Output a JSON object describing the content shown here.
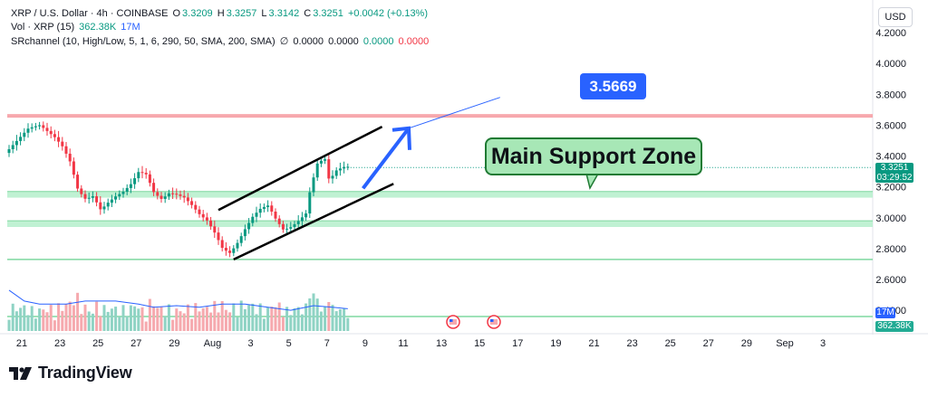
{
  "header": {
    "symbol_line": "XRP / U.S. Dollar · 4h · COINBASE",
    "o_label": "O",
    "o_val": "3.3209",
    "h_label": "H",
    "h_val": "3.3257",
    "l_label": "L",
    "l_val": "3.3142",
    "c_label": "C",
    "c_val": "3.3251",
    "change": "+0.0042 (+0.13%)",
    "vol_label": "Vol · XRP (15)",
    "vol_val1": "362.38K",
    "vol_val2": "17M",
    "src_label": "SRchannel (10, High/Low, 5, 1, 6, 290, 50, SMA, 200, SMA)",
    "src_icon": "∅",
    "src_v1": "0.0000",
    "src_v2": "0.0000",
    "src_v3": "0.0000",
    "src_v4": "0.0000"
  },
  "currency_button": "USD",
  "annotations": {
    "callout_text": "Main Support Zone",
    "target_text": "3.5669"
  },
  "price_tags": {
    "last_price": "3.3251",
    "countdown": "03:29:52",
    "vol_ma": "17M",
    "vol_last": "362.38K"
  },
  "branding": {
    "logo_text": "TradingView"
  },
  "colors": {
    "up": "#089981",
    "down": "#f23645",
    "zone_fill": "#b9f0ce",
    "resistance_line": "#f7a8ad",
    "target_blue": "#2962ff",
    "vol_ma_line": "#2962ff"
  },
  "chart_data": [
    {
      "type": "candlestick",
      "title": "XRP / U.S. Dollar · 4h · COINBASE",
      "y_ticks": [
        "4.2000",
        "4.0000",
        "3.8000",
        "3.6000",
        "3.4000",
        "3.2000",
        "3.0000",
        "2.8000",
        "2.6000",
        "2.4000"
      ],
      "x_ticks": [
        "21",
        "23",
        "25",
        "27",
        "29",
        "Aug",
        "3",
        "5",
        "7",
        "9",
        "11",
        "13",
        "15",
        "17",
        "19",
        "21",
        "23",
        "25",
        "27",
        "29",
        "Sep",
        "3"
      ],
      "ylim": [
        2.4,
        4.28
      ],
      "price_path": [
        [
          0,
          3.42
        ],
        [
          3,
          3.5
        ],
        [
          6,
          3.58
        ],
        [
          9,
          3.6
        ],
        [
          11,
          3.56
        ],
        [
          13,
          3.52
        ],
        [
          15,
          3.46
        ],
        [
          17,
          3.36
        ],
        [
          19,
          3.18
        ],
        [
          21,
          3.12
        ],
        [
          23,
          3.14
        ],
        [
          25,
          3.05
        ],
        [
          27,
          3.1
        ],
        [
          29,
          3.14
        ],
        [
          31,
          3.17
        ],
        [
          33,
          3.22
        ],
        [
          35,
          3.3
        ],
        [
          37,
          3.28
        ],
        [
          39,
          3.16
        ],
        [
          41,
          3.12
        ],
        [
          43,
          3.16
        ],
        [
          45,
          3.15
        ],
        [
          47,
          3.13
        ],
        [
          49,
          3.08
        ],
        [
          51,
          3.02
        ],
        [
          53,
          2.98
        ],
        [
          55,
          2.9
        ],
        [
          57,
          2.8
        ],
        [
          59,
          2.77
        ],
        [
          61,
          2.84
        ],
        [
          63,
          2.93
        ],
        [
          65,
          3.01
        ],
        [
          67,
          3.06
        ],
        [
          69,
          3.08
        ],
        [
          71,
          2.99
        ],
        [
          73,
          2.92
        ],
        [
          75,
          2.94
        ],
        [
          77,
          2.98
        ],
        [
          79,
          3.03
        ],
        [
          80,
          3.18
        ],
        [
          82,
          3.36
        ],
        [
          84,
          3.38
        ],
        [
          85,
          3.24
        ],
        [
          87,
          3.31
        ],
        [
          89,
          3.33
        ]
      ],
      "volume_ma_path": [
        [
          0,
          2.53
        ],
        [
          4,
          2.46
        ],
        [
          8,
          2.44
        ],
        [
          15,
          2.44
        ],
        [
          20,
          2.46
        ],
        [
          28,
          2.46
        ],
        [
          34,
          2.44
        ],
        [
          38,
          2.42
        ],
        [
          44,
          2.43
        ],
        [
          50,
          2.42
        ],
        [
          56,
          2.44
        ],
        [
          62,
          2.44
        ],
        [
          68,
          2.42
        ],
        [
          74,
          2.4
        ],
        [
          80,
          2.43
        ],
        [
          85,
          2.42
        ],
        [
          89,
          2.41
        ]
      ],
      "support_zones": [
        [
          3.13,
          3.17
        ],
        [
          2.94,
          2.98
        ]
      ],
      "resistance_level": 3.66,
      "level_lines": [
        2.73,
        2.36
      ],
      "channel": {
        "upper": [
          [
            55,
            3.05
          ],
          [
            98,
            3.59
          ]
        ],
        "lower": [
          [
            59,
            2.73
          ],
          [
            101,
            3.22
          ]
        ]
      },
      "projection_arrow": [
        [
          93,
          3.19
        ],
        [
          105,
          3.58
        ]
      ],
      "target_line": [
        [
          105,
          3.58
        ],
        [
          129,
          3.78
        ]
      ],
      "target_price": "3.5669",
      "last_price": "3.3251"
    }
  ]
}
